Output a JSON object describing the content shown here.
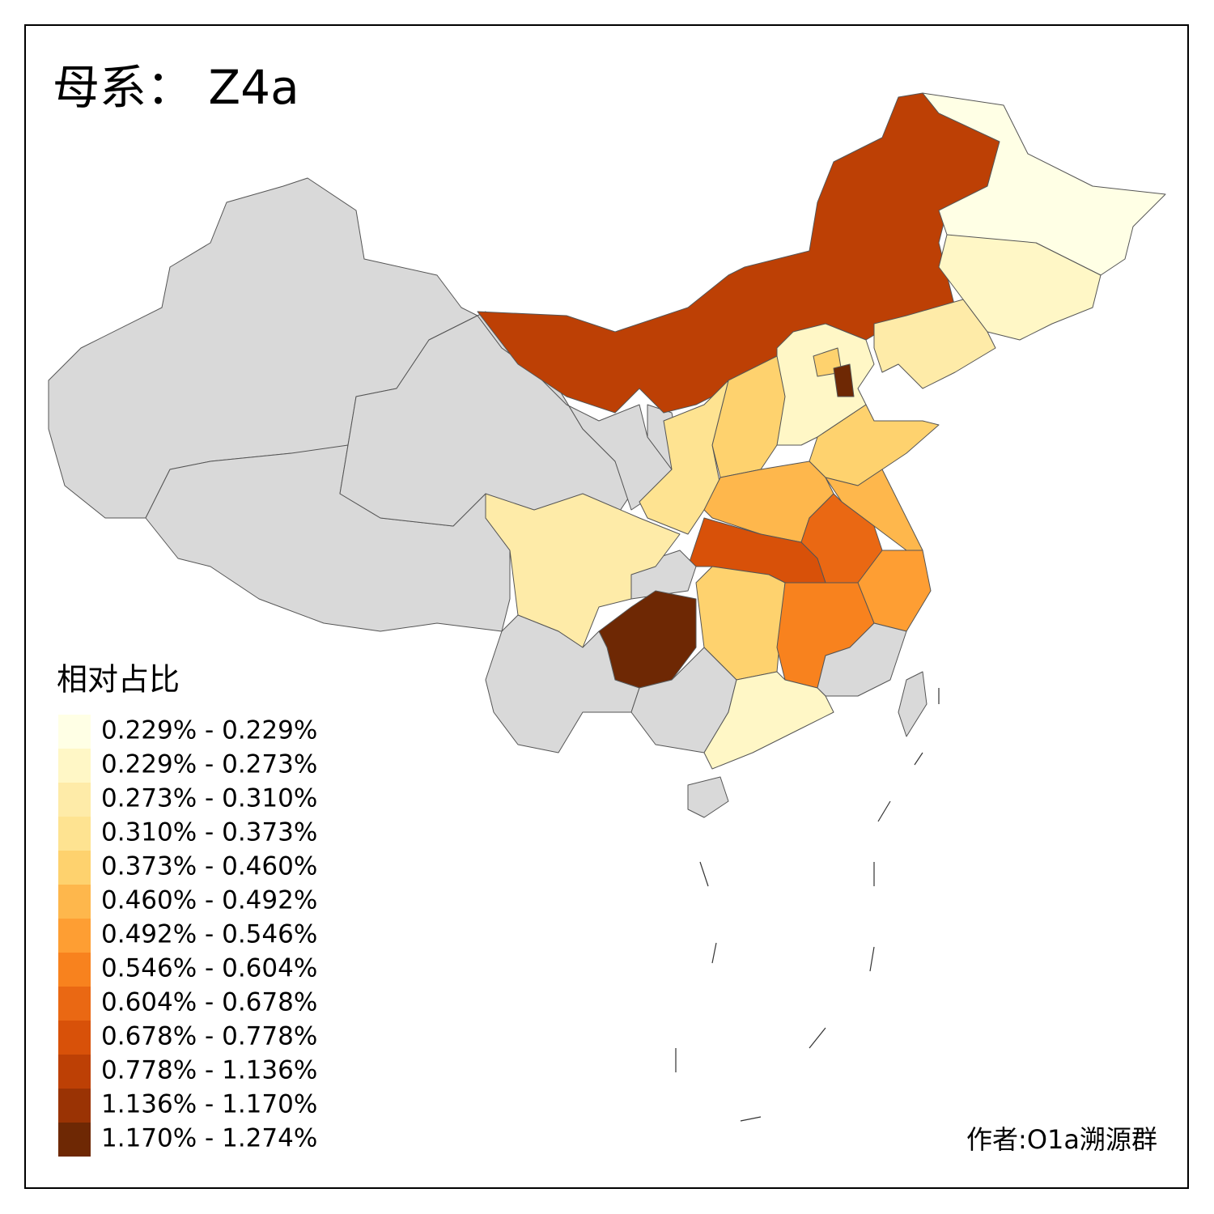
{
  "title": "母系： Z4a",
  "legend": {
    "title": "相对占比",
    "items": [
      {
        "label": "0.229% - 0.229%",
        "color": "#ffffe5"
      },
      {
        "label": "0.229% - 0.273%",
        "color": "#fff7c6"
      },
      {
        "label": "0.273% - 0.310%",
        "color": "#feeba8"
      },
      {
        "label": "0.310% - 0.373%",
        "color": "#fee391"
      },
      {
        "label": "0.373% - 0.460%",
        "color": "#fed26e"
      },
      {
        "label": "0.460% - 0.492%",
        "color": "#feb74c"
      },
      {
        "label": "0.492% - 0.546%",
        "color": "#fe9e33"
      },
      {
        "label": "0.546% - 0.604%",
        "color": "#f8821e"
      },
      {
        "label": "0.604% - 0.678%",
        "color": "#ea6813"
      },
      {
        "label": "0.678% - 0.778%",
        "color": "#d85109"
      },
      {
        "label": "0.778% - 1.136%",
        "color": "#bd4005"
      },
      {
        "label": "1.136% - 1.170%",
        "color": "#9a3304"
      },
      {
        "label": "1.170% - 1.274%",
        "color": "#6e2804"
      }
    ]
  },
  "author": "作者:O1a溯源群"
}
